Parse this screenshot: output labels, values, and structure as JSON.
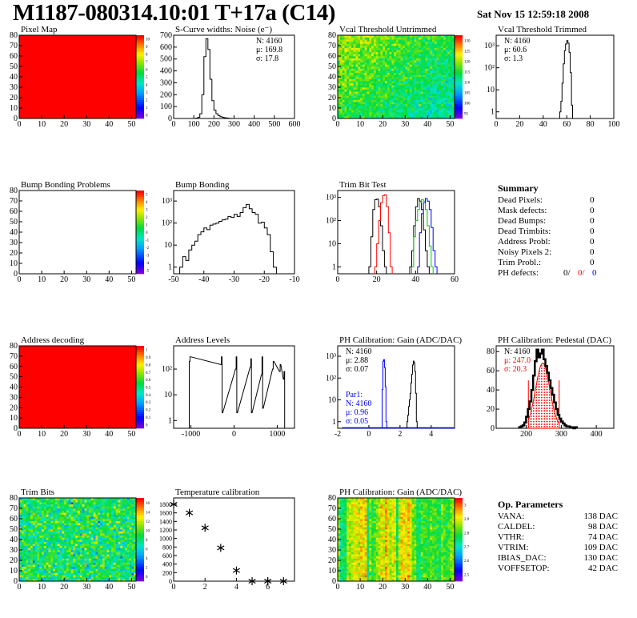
{
  "header": {
    "title": "M1187-080314.10:01 T+17a (C14)",
    "date": "Sat Nov 15 12:59:18 2008"
  },
  "summary": {
    "title": "Summary",
    "rows": [
      {
        "label": "Dead Pixels:",
        "value": "0"
      },
      {
        "label": "Mask defects:",
        "value": "0"
      },
      {
        "label": "Dead Bumps:",
        "value": "0"
      },
      {
        "label": "Dead Trimbits:",
        "value": "0"
      },
      {
        "label": "Address Probl:",
        "value": "0"
      },
      {
        "label": "Noisy Pixels 2:",
        "value": "0"
      },
      {
        "label": "Trim Probl.:",
        "value": "0"
      }
    ],
    "ph_label": "PH defects:",
    "ph_values": [
      "0/",
      "0/",
      "0"
    ],
    "ph_colors": [
      "#000000",
      "#ff0000",
      "#0000ff"
    ]
  },
  "op_params": {
    "title": "Op. Parameters",
    "rows": [
      {
        "label": "VANA:",
        "value": "138 DAC"
      },
      {
        "label": "CALDEL:",
        "value": "98 DAC"
      },
      {
        "label": "VTHR:",
        "value": "74 DAC"
      },
      {
        "label": "VTRIM:",
        "value": "109 DAC"
      },
      {
        "label": "IBIAS_DAC:",
        "value": "130 DAC"
      },
      {
        "label": "VOFFSETOP:",
        "value": "42 DAC"
      }
    ]
  },
  "chart_data": [
    {
      "id": "pixel-map",
      "type": "heatmap",
      "title": "Pixel Map",
      "xlim": [
        0,
        52
      ],
      "ylim": [
        0,
        80
      ],
      "xticks": [
        0,
        10,
        20,
        30,
        40,
        50
      ],
      "yticks": [
        0,
        10,
        20,
        30,
        40,
        50,
        60,
        70,
        80
      ],
      "zlim": [
        0,
        10
      ],
      "zticks": [
        "0",
        "1",
        "2",
        "3",
        "4",
        "5",
        "6",
        "7",
        "8",
        "9",
        "10"
      ],
      "pattern": "uniform",
      "value": 10
    },
    {
      "id": "scurve-noise",
      "type": "hist",
      "title": "S-Curve widths: Noise (e⁻)",
      "xlim": [
        0,
        600
      ],
      "ylim": [
        0,
        700
      ],
      "xticks": [
        0,
        100,
        200,
        300,
        400,
        500,
        600
      ],
      "yticks": [
        0,
        100,
        200,
        300,
        400,
        500,
        600,
        700
      ],
      "log": false,
      "series": [
        {
          "color": "#000000",
          "binwidth": 10,
          "x": [
            115,
            125,
            135,
            145,
            155,
            165,
            175,
            185,
            195,
            205,
            215,
            225,
            235,
            245,
            255,
            265,
            275,
            285
          ],
          "y": [
            3,
            10,
            40,
            200,
            520,
            670,
            580,
            330,
            150,
            70,
            40,
            25,
            15,
            10,
            6,
            4,
            2,
            1
          ]
        }
      ],
      "stats": [
        {
          "text": "N: 4160",
          "color": "#000000"
        },
        {
          "text": "μ: 169.8",
          "color": "#000000"
        },
        {
          "text": "σ: 17.8",
          "color": "#000000"
        }
      ],
      "stats_pos": "right"
    },
    {
      "id": "vcal-untrimmed",
      "type": "heatmap",
      "title": "Vcal Threshold Untrimmed",
      "xlim": [
        0,
        52
      ],
      "ylim": [
        0,
        80
      ],
      "xticks": [
        0,
        10,
        20,
        30,
        40,
        50
      ],
      "yticks": [
        0,
        10,
        20,
        30,
        40,
        50,
        60,
        70,
        80
      ],
      "zlim": [
        93,
        133
      ],
      "zticks": [
        "95",
        "100",
        "105",
        "110",
        "115",
        "120",
        "125",
        "130"
      ],
      "pattern": "vcal"
    },
    {
      "id": "vcal-trimmed",
      "type": "hist",
      "title": "Vcal Threshold Trimmed",
      "xlim": [
        0,
        100
      ],
      "ylim": [
        0.5,
        3000
      ],
      "xticks": [
        0,
        20,
        40,
        60,
        80,
        100
      ],
      "yticks": [
        1,
        10,
        100,
        1000
      ],
      "ylabels": [
        "1",
        "10",
        "10²",
        "10³"
      ],
      "log": true,
      "series": [
        {
          "color": "#000000",
          "binwidth": 1,
          "x": [
            54.5,
            55.5,
            56.5,
            57.5,
            58.5,
            59.5,
            60.5,
            61.5,
            62.5,
            63.5,
            64.5
          ],
          "y": [
            1,
            3,
            20,
            150,
            600,
            1200,
            1700,
            1300,
            500,
            60,
            2
          ]
        }
      ],
      "stats": [
        {
          "text": "N: 4160",
          "color": "#000000"
        },
        {
          "text": "μ: 60.6",
          "color": "#000000"
        },
        {
          "text": "σ:  1.3",
          "color": "#000000"
        }
      ],
      "stats_pos": "left"
    },
    {
      "id": "bump-bonding-problems",
      "type": "heatmap",
      "title": "Bump Bonding Problems",
      "xlim": [
        0,
        52
      ],
      "ylim": [
        0,
        80
      ],
      "xticks": [
        0,
        10,
        20,
        30,
        40,
        50
      ],
      "yticks": [
        0,
        10,
        20,
        30,
        40,
        50,
        60,
        70,
        80
      ],
      "zlim": [
        -5,
        5
      ],
      "zticks": [
        "-5",
        "-4",
        "-3",
        "-2",
        "-1",
        "0",
        "1",
        "2",
        "3",
        "4",
        "5"
      ],
      "pattern": "empty"
    },
    {
      "id": "bump-bonding",
      "type": "hist",
      "title": "Bump Bonding",
      "xlim": [
        -50,
        -10
      ],
      "ylim": [
        0.5,
        3000
      ],
      "xticks": [
        -50,
        -40,
        -30,
        -20,
        -10
      ],
      "yticks": [
        1,
        10,
        100,
        1000
      ],
      "ylabels": [
        "1",
        "10",
        "10²",
        "10³"
      ],
      "log": true,
      "series": [
        {
          "color": "#000000",
          "binwidth": 1,
          "x": [
            -47.5,
            -46.5,
            -45.5,
            -44.5,
            -43.5,
            -42.5,
            -41.5,
            -40.5,
            -39.5,
            -38.5,
            -37.5,
            -36.5,
            -35.5,
            -34.5,
            -33.5,
            -32.5,
            -31.5,
            -30.5,
            -29.5,
            -28.5,
            -27.5,
            -26.5,
            -25.5,
            -24.5,
            -23.5,
            -22.5,
            -21.5,
            -20.5,
            -19.5,
            -18.5,
            -17.5,
            -16.5
          ],
          "y": [
            1,
            3,
            2,
            6,
            10,
            15,
            30,
            40,
            60,
            50,
            80,
            90,
            100,
            120,
            140,
            150,
            200,
            180,
            250,
            200,
            300,
            500,
            700,
            450,
            300,
            250,
            100,
            110,
            60,
            30,
            5,
            1
          ]
        }
      ]
    },
    {
      "id": "trim-bit-test",
      "type": "hist",
      "title": "Trim Bit Test",
      "xlim": [
        0,
        60
      ],
      "ylim": [
        0.5,
        2000
      ],
      "xticks": [
        0,
        20,
        40,
        60
      ],
      "yticks": [
        1,
        10,
        100,
        1000
      ],
      "ylabels": [
        "1",
        "10",
        "10²",
        "10³"
      ],
      "log": true,
      "series": [
        {
          "color": "#000000",
          "binwidth": 1,
          "x": [
            16.5,
            17.5,
            18.5,
            19.5,
            20.5,
            21.5,
            22.5,
            23.5,
            24.5
          ],
          "y": [
            1,
            20,
            300,
            800,
            850,
            400,
            60,
            5,
            1
          ]
        },
        {
          "color": "#ff0000",
          "binwidth": 1,
          "x": [
            19.5,
            20.5,
            21.5,
            22.5,
            23.5,
            24.5,
            25.5,
            26.5,
            27.5
          ],
          "y": [
            1,
            10,
            100,
            600,
            1200,
            1300,
            400,
            30,
            1
          ]
        },
        {
          "color": "#000000",
          "binwidth": 1,
          "x": [
            37.5,
            38.5,
            39.5,
            40.5,
            41.5,
            42.5,
            43.5,
            44.5,
            45.5,
            46.5
          ],
          "y": [
            1,
            5,
            60,
            400,
            900,
            700,
            300,
            40,
            5,
            1
          ]
        },
        {
          "color": "#00cc00",
          "binwidth": 1,
          "x": [
            38.5,
            39.5,
            40.5,
            41.5,
            42.5,
            43.5,
            44.5,
            45.5,
            46.5,
            47.5,
            48.5
          ],
          "y": [
            1,
            20,
            100,
            300,
            600,
            800,
            700,
            300,
            60,
            8,
            1
          ]
        },
        {
          "color": "#0000ff",
          "binwidth": 1,
          "x": [
            41.5,
            42.5,
            43.5,
            44.5,
            45.5,
            46.5,
            47.5,
            48.5,
            49.5,
            50.5
          ],
          "y": [
            1,
            30,
            200,
            600,
            900,
            700,
            300,
            50,
            5,
            1
          ]
        }
      ]
    },
    {
      "id": "address-decoding",
      "type": "heatmap",
      "title": "Address decoding",
      "xlim": [
        0,
        52
      ],
      "ylim": [
        0,
        80
      ],
      "xticks": [
        0,
        10,
        20,
        30,
        40,
        50
      ],
      "yticks": [
        0,
        10,
        20,
        30,
        40,
        50,
        60,
        70,
        80
      ],
      "zlim": [
        0,
        1
      ],
      "zticks": [
        "0",
        "0.1",
        "0.2",
        "0.3",
        "0.4",
        "0.5",
        "0.6",
        "0.7",
        "0.8",
        "0.9",
        "1"
      ],
      "pattern": "uniform",
      "value": 1
    },
    {
      "id": "address-levels",
      "type": "hist",
      "title": "Address Levels",
      "xlim": [
        -1400,
        1400
      ],
      "ylim": [
        0.5,
        800
      ],
      "xticks": [
        -1000,
        0,
        1000
      ],
      "yticks": [
        1,
        10,
        100
      ],
      "ylabels": [
        "1",
        "10",
        "10²"
      ],
      "log": true,
      "series": [
        {
          "color": "#000000",
          "binwidth": 15,
          "x": [
            -1030,
            -1015,
            -300,
            -285,
            -270,
            40,
            55,
            70,
            380,
            395,
            410,
            640,
            655,
            670,
            900,
            915,
            1060,
            1075,
            1150,
            1165
          ],
          "y": [
            200,
            300,
            150,
            300,
            2,
            100,
            300,
            2,
            120,
            250,
            2,
            60,
            300,
            3,
            100,
            200,
            80,
            150,
            40,
            80
          ]
        }
      ]
    },
    {
      "id": "ph-gain-hist",
      "type": "hist",
      "title": "PH Calibration: Gain (ADC/DAC)",
      "xlim": [
        -2,
        5.5
      ],
      "ylim": [
        0.5,
        3000
      ],
      "xticks": [
        -2,
        0,
        2,
        4
      ],
      "yticks": [
        1,
        10,
        100,
        1000
      ],
      "ylabels": [
        "1",
        "10",
        "10²",
        "10³"
      ],
      "log": true,
      "series": [
        {
          "color": "#0000ff",
          "binwidth": 0.05,
          "baseline": true,
          "x": [
            0.875,
            0.925,
            0.975,
            1.025,
            1.075,
            1.125
          ],
          "y": [
            30,
            600,
            700,
            300,
            40,
            1
          ]
        },
        {
          "color": "#000000",
          "binwidth": 0.05,
          "x": [
            2.475,
            2.525,
            2.575,
            2.625,
            2.675,
            2.725,
            2.775,
            2.825,
            2.875,
            2.925,
            2.975,
            3.025,
            3.075
          ],
          "y": [
            1,
            2,
            5,
            10,
            20,
            60,
            150,
            400,
            600,
            500,
            200,
            20,
            1
          ]
        }
      ],
      "stats": [
        {
          "text": "N: 4160",
          "color": "#000000"
        },
        {
          "text": "μ: 2.88",
          "color": "#000000"
        },
        {
          "text": "σ: 0.07",
          "color": "#000000"
        }
      ],
      "stats_pos": "left",
      "stats2": [
        {
          "text": "Par1:",
          "color": "#0000ff"
        },
        {
          "text": "N: 4160",
          "color": "#0000ff"
        },
        {
          "text": "μ: 0.96",
          "color": "#0000ff"
        },
        {
          "text": "σ: 0.05",
          "color": "#0000ff"
        }
      ]
    },
    {
      "id": "ph-pedestal",
      "type": "hist",
      "title": "PH Calibration: Pedestal (DAC)",
      "xlim": [
        114,
        450
      ],
      "ylim": [
        0,
        86
      ],
      "xticks": [
        200,
        300,
        400
      ],
      "yticks": [
        0,
        20,
        40,
        60,
        80
      ],
      "log": false,
      "fit": {
        "color": "#ff0000",
        "range": [
          206,
          294
        ],
        "mean": 247.0,
        "sigma": 20.3,
        "amp": 68
      },
      "series": [
        {
          "color": "#000000",
          "binwidth": 5,
          "thick": true,
          "x": [
            182,
            187,
            192,
            197,
            202,
            207,
            212,
            217,
            222,
            227,
            232,
            237,
            242,
            247,
            252,
            257,
            262,
            267,
            272,
            277,
            282,
            287,
            292,
            297,
            302,
            307,
            312,
            317,
            322,
            327,
            332,
            337,
            342
          ],
          "y": [
            1,
            2,
            3,
            6,
            12,
            20,
            28,
            40,
            55,
            70,
            82,
            74,
            78,
            82,
            72,
            65,
            58,
            50,
            42,
            35,
            27,
            20,
            14,
            10,
            7,
            5,
            3,
            2,
            2,
            1,
            1,
            0,
            1
          ]
        }
      ],
      "stats": [
        {
          "text": "N: 4160",
          "color": "#000000"
        },
        {
          "text": "μ: 247.0",
          "color": "#ff0000"
        },
        {
          "text": "σ: 20.3",
          "color": "#ff0000"
        }
      ],
      "stats_pos": "left"
    },
    {
      "id": "trim-bits",
      "type": "heatmap",
      "title": "Trim Bits",
      "xlim": [
        0,
        52
      ],
      "ylim": [
        0,
        80
      ],
      "xticks": [
        0,
        10,
        20,
        30,
        40,
        50
      ],
      "yticks": [
        0,
        10,
        20,
        30,
        40,
        50,
        60,
        70,
        80
      ],
      "zlim": [
        0,
        16
      ],
      "zticks": [
        "0",
        "2",
        "4",
        "6",
        "8",
        "10",
        "12",
        "14",
        "16"
      ],
      "pattern": "trim"
    },
    {
      "id": "temperature-calibration",
      "type": "scatter",
      "title": "Temperature calibration",
      "xlim": [
        0,
        7.7
      ],
      "ylim": [
        0,
        1950
      ],
      "xticks": [
        0,
        2,
        4,
        6
      ],
      "yticks": [
        0,
        200,
        400,
        600,
        800,
        1000,
        1200,
        1400,
        1600,
        1800
      ],
      "x": [
        0,
        1,
        2,
        3,
        4,
        5,
        6,
        7
      ],
      "y": [
        1800,
        1600,
        1250,
        780,
        250,
        0,
        0,
        0
      ]
    },
    {
      "id": "ph-gain-map",
      "type": "heatmap",
      "title": "PH Calibration: Gain (ADC/DAC)",
      "xlim": [
        0,
        52
      ],
      "ylim": [
        0,
        80
      ],
      "xticks": [
        0,
        10,
        20,
        30,
        40,
        50
      ],
      "yticks": [
        0,
        10,
        20,
        30,
        40,
        50,
        60,
        70,
        80
      ],
      "zlim": [
        2.4,
        3.05
      ],
      "zticks": [
        "2.5",
        "2.6",
        "2.7",
        "2.8",
        "2.9",
        "3"
      ],
      "pattern": "phgain"
    }
  ]
}
